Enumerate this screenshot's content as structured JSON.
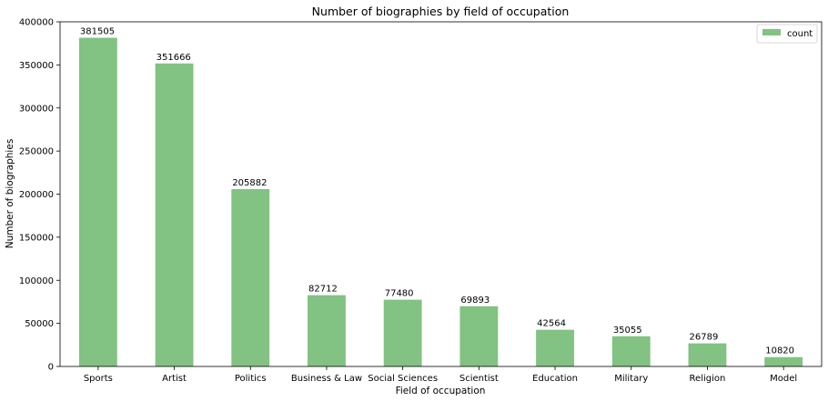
{
  "chart_data": {
    "type": "bar",
    "title": "Number of biographies by field of occupation",
    "xlabel": "Field of occupation",
    "ylabel": "Number of biographies",
    "categories": [
      "Sports",
      "Artist",
      "Politics",
      "Business & Law",
      "Social Sciences",
      "Scientist",
      "Education",
      "Military",
      "Religion",
      "Model"
    ],
    "series": [
      {
        "name": "count",
        "values": [
          381505,
          351666,
          205882,
          82712,
          77480,
          69893,
          42564,
          35055,
          26789,
          10820
        ]
      }
    ],
    "ylim": [
      0,
      400000
    ],
    "yticks": [
      0,
      50000,
      100000,
      150000,
      200000,
      250000,
      300000,
      350000,
      400000
    ],
    "grid": false,
    "legend_position": "top-right",
    "colors": {
      "bar": "#82c282",
      "axis": "#000000"
    }
  }
}
